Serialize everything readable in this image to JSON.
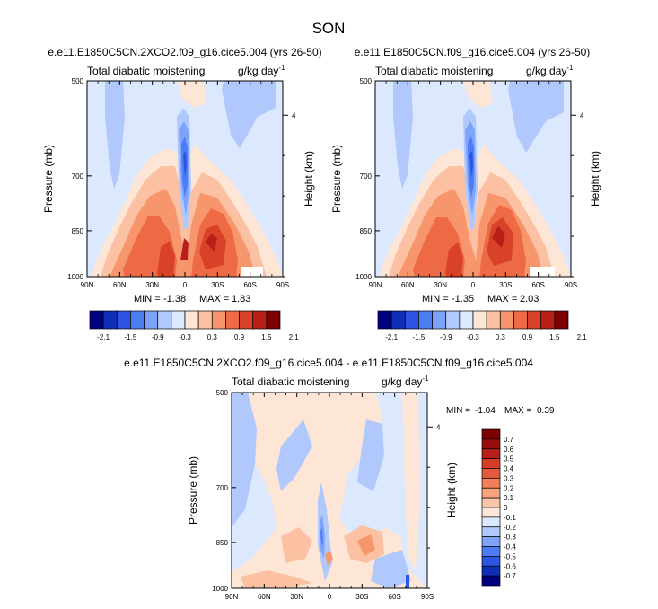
{
  "title": "SON",
  "colors": {
    "div12": [
      "#00007f",
      "#0f2eb8",
      "#2b55e0",
      "#4d7cf5",
      "#7ea4fa",
      "#b0c8fc",
      "#dbe8fe",
      "#fee6d6",
      "#fcc1a2",
      "#f7966d",
      "#ed6a44",
      "#d94228",
      "#b81f16",
      "#7f0000"
    ],
    "div16": [
      "#00007f",
      "#0f2eb8",
      "#2b55e0",
      "#4d7cf5",
      "#7ea4fa",
      "#b0c8fc",
      "#dbe8fe",
      "#fde6d7",
      "#fbc6a8",
      "#f9a47f",
      "#f17f5a",
      "#e45b3b",
      "#d63d25",
      "#b81f16",
      "#950c0a",
      "#7f0000"
    ],
    "grid_background": "#dbe8fe"
  },
  "chart_data": [
    {
      "type": "heatmap",
      "title": "e.e11.E1850C5CN.2XCO2.f09_g16.cice5.004 (yrs 26-50)",
      "left_label": "Total diabatic moistening",
      "right_label": "g/kg day",
      "right_label_exp": "-1",
      "xlabel": "",
      "ylabel": "Pressure (mb)",
      "ylabel_right": "Height (km)",
      "x_ticks": [
        "90N",
        "60N",
        "30N",
        "0",
        "30S",
        "60S",
        "90S"
      ],
      "y_ticks": [
        "500",
        "700",
        "850",
        "1000"
      ],
      "y_tick_values": [
        500,
        700,
        850,
        1000
      ],
      "y_right_ticks": [
        "4"
      ],
      "y_right_tick_values": [
        4
      ],
      "xlim": [
        90,
        -90
      ],
      "ylim": [
        1000,
        500
      ],
      "min_label": "MIN =",
      "min_value": "-1.38",
      "max_label": "MAX =",
      "max_value": "1.83",
      "colorbar_ticks": [
        "-2.1",
        "-1.5",
        "-0.9",
        "-0.3",
        "0.3",
        "0.9",
        "1.5",
        "2.1"
      ],
      "levels": [
        -2.1,
        -1.8,
        -1.5,
        -1.2,
        -0.9,
        -0.6,
        -0.3,
        0,
        0.3,
        0.6,
        0.9,
        1.2,
        1.5,
        1.8,
        2.1
      ]
    },
    {
      "type": "heatmap",
      "title": "e.e11.E1850C5CN.f09_g16.cice5.004 (yrs 26-50)",
      "left_label": "Total diabatic moistening",
      "right_label": "g/kg day",
      "right_label_exp": "-1",
      "xlabel": "",
      "ylabel": "Pressure (mb)",
      "ylabel_right": "Height (km)",
      "x_ticks": [
        "90N",
        "60N",
        "30N",
        "0",
        "30S",
        "60S",
        "90S"
      ],
      "y_ticks": [
        "500",
        "700",
        "850",
        "1000"
      ],
      "y_tick_values": [
        500,
        700,
        850,
        1000
      ],
      "y_right_ticks": [
        "4"
      ],
      "y_right_tick_values": [
        4
      ],
      "xlim": [
        90,
        -90
      ],
      "ylim": [
        1000,
        500
      ],
      "min_label": "MIN =",
      "min_value": "-1.35",
      "max_label": "MAX =",
      "max_value": "2.03",
      "colorbar_ticks": [
        "-2.1",
        "-1.5",
        "-0.9",
        "-0.3",
        "0.3",
        "0.9",
        "1.5",
        "2.1"
      ],
      "levels": [
        -2.1,
        -1.8,
        -1.5,
        -1.2,
        -0.9,
        -0.6,
        -0.3,
        0,
        0.3,
        0.6,
        0.9,
        1.2,
        1.5,
        1.8,
        2.1
      ]
    },
    {
      "type": "heatmap",
      "title": "e.e11.E1850C5CN.2XCO2.f09_g16.cice5.004 - e.e11.E1850C5CN.f09_g16.cice5.004",
      "left_label": "Total diabatic moistening",
      "right_label": "g/kg day",
      "right_label_exp": "-1",
      "xlabel": "",
      "ylabel": "Pressure (mb)",
      "ylabel_right": "Height (km)",
      "x_ticks": [
        "90N",
        "60N",
        "30N",
        "0",
        "30S",
        "60S",
        "90S"
      ],
      "y_ticks": [
        "500",
        "700",
        "850",
        "1000"
      ],
      "y_tick_values": [
        500,
        700,
        850,
        1000
      ],
      "y_right_ticks": [
        "4"
      ],
      "y_right_tick_values": [
        4
      ],
      "xlim": [
        90,
        -90
      ],
      "ylim": [
        1000,
        500
      ],
      "min_label": "MIN =",
      "min_value": "-1.04",
      "max_label": "MAX =",
      "max_value": "0.39",
      "colorbar_ticks": [
        "0.7",
        "0.6",
        "0.5",
        "0.4",
        "0.3",
        "0.2",
        "0.1",
        "0",
        "-0.1",
        "-0.2",
        "-0.3",
        "-0.4",
        "-0.5",
        "-0.6",
        "-0.7"
      ],
      "levels": [
        -0.7,
        -0.6,
        -0.5,
        -0.4,
        -0.3,
        -0.2,
        -0.1,
        0,
        0.1,
        0.2,
        0.3,
        0.4,
        0.5,
        0.6,
        0.7
      ]
    }
  ]
}
